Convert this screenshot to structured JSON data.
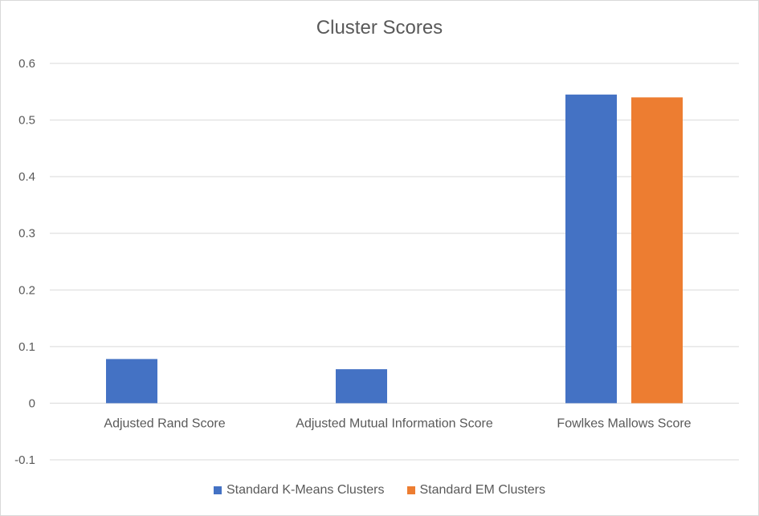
{
  "chart_data": {
    "type": "bar",
    "title": "Cluster Scores",
    "categories": [
      "Adjusted Rand Score",
      "Adjusted Mutual Information Score",
      "Fowlkes Mallows Score"
    ],
    "series": [
      {
        "name": "Standard K-Means Clusters",
        "color": "#4472c4",
        "values": [
          0.078,
          0.06,
          0.545
        ]
      },
      {
        "name": "Standard EM Clusters",
        "color": "#ed7d31",
        "values": [
          0,
          0,
          0.54
        ]
      }
    ],
    "ylim": [
      -0.1,
      0.6
    ],
    "yticks": [
      -0.1,
      0,
      0.1,
      0.2,
      0.3,
      0.4,
      0.5,
      0.6
    ],
    "ytick_labels": [
      "-0.1",
      "0",
      "0.1",
      "0.2",
      "0.3",
      "0.4",
      "0.5",
      "0.6"
    ],
    "grid": true,
    "legend_position": "bottom",
    "xlabel": "",
    "ylabel": ""
  }
}
